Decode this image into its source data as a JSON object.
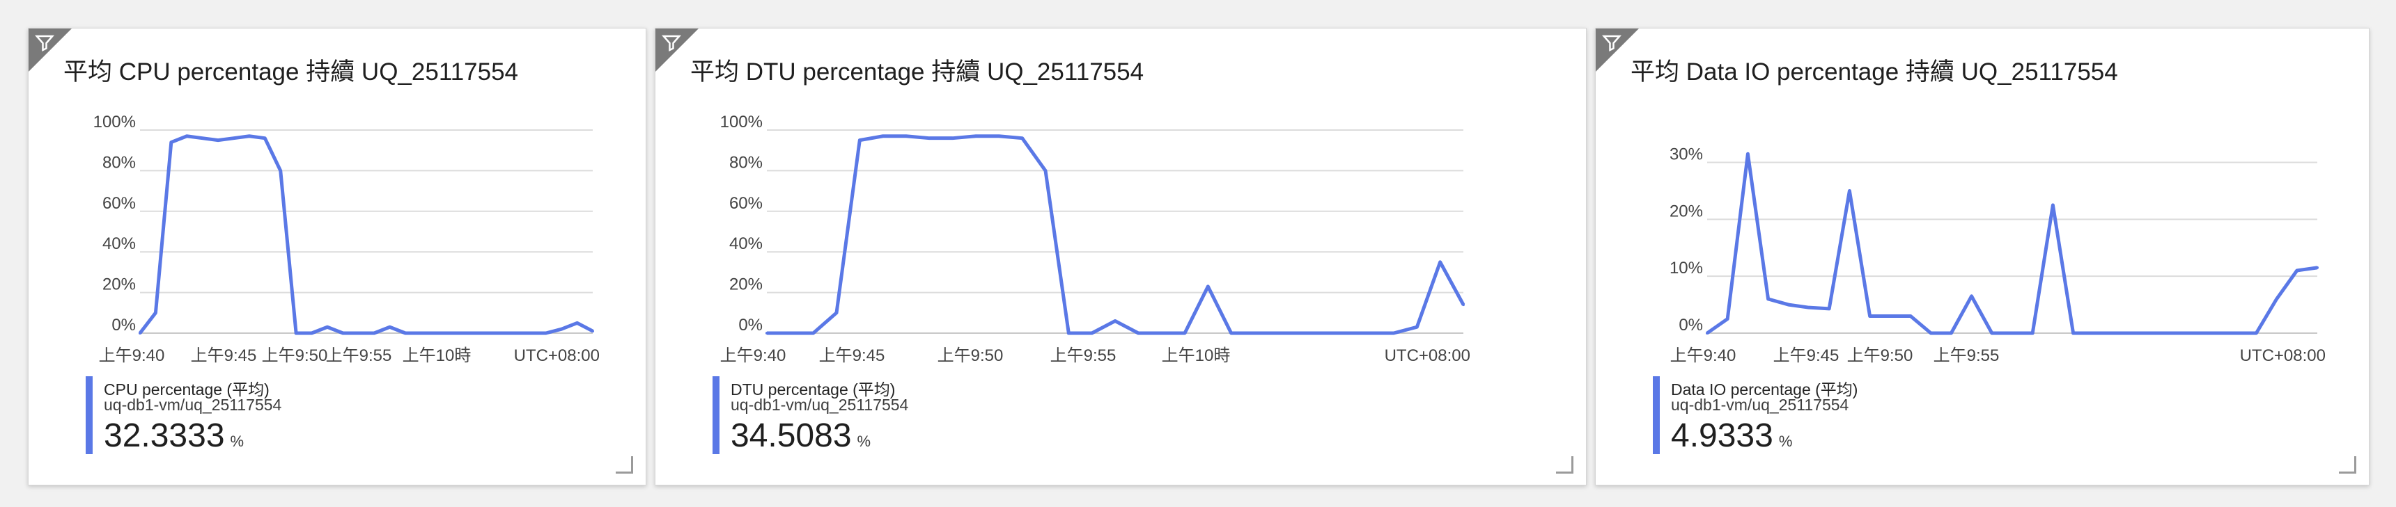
{
  "tiles": [
    {
      "title": "平均 CPU percentage 持續 UQ_25117554",
      "legend": {
        "name": "CPU percentage (平均)",
        "resource": "uq-db1-vm/uq_25117554",
        "value": "32.3333",
        "unit": "%"
      },
      "timezone": "UTC+08:00",
      "icon": "filter-icon"
    },
    {
      "title": "平均 DTU percentage 持續 UQ_25117554",
      "legend": {
        "name": "DTU percentage (平均)",
        "resource": "uq-db1-vm/uq_25117554",
        "value": "34.5083",
        "unit": "%"
      },
      "timezone": "UTC+08:00",
      "icon": "filter-icon"
    },
    {
      "title": "平均 Data IO percentage 持續 UQ_25117554",
      "legend": {
        "name": "Data IO percentage (平均)",
        "resource": "uq-db1-vm/uq_25117554",
        "value": "4.9333",
        "unit": "%"
      },
      "timezone": "UTC+08:00",
      "icon": "filter-icon"
    }
  ],
  "chart_data": [
    {
      "type": "line",
      "ylim": [
        0,
        100
      ],
      "y_ticks": [
        "0%",
        "20%",
        "40%",
        "60%",
        "80%",
        "100%"
      ],
      "x_ticks": [
        "上午9:40",
        "上午9:45",
        "上午9:50",
        "上午9:55",
        "上午10時"
      ],
      "series": [
        {
          "name": "CPU percentage (平均)",
          "color": "#5a78e6",
          "values": [
            0,
            10,
            94,
            97,
            96,
            95,
            96,
            97,
            96,
            80,
            0,
            0,
            3,
            0,
            0,
            0,
            3,
            0,
            0,
            0,
            0,
            0,
            0,
            0,
            0,
            0,
            0,
            2,
            5,
            1
          ]
        }
      ],
      "grid": true
    },
    {
      "type": "line",
      "ylim": [
        0,
        100
      ],
      "y_ticks": [
        "0%",
        "20%",
        "40%",
        "60%",
        "80%",
        "100%"
      ],
      "x_ticks": [
        "上午9:40",
        "上午9:45",
        "上午9:50",
        "上午9:55",
        "上午10時"
      ],
      "series": [
        {
          "name": "DTU percentage (平均)",
          "color": "#5a78e6",
          "values": [
            0,
            0,
            0,
            10,
            95,
            97,
            97,
            96,
            96,
            97,
            97,
            96,
            80,
            0,
            0,
            6,
            0,
            0,
            0,
            23,
            0,
            0,
            0,
            0,
            0,
            0,
            0,
            0,
            3,
            35,
            14
          ]
        }
      ],
      "grid": true
    },
    {
      "type": "line",
      "ylim": [
        0,
        33
      ],
      "y_ticks": [
        "0%",
        "10%",
        "20%",
        "30%"
      ],
      "x_ticks": [
        "上午9:40",
        "上午9:45",
        "上午9:50",
        "上午9:55"
      ],
      "series": [
        {
          "name": "Data IO percentage (平均)",
          "color": "#5a78e6",
          "values": [
            0,
            2.5,
            31.5,
            6,
            5,
            4.5,
            4.3,
            25,
            3,
            3,
            3,
            0,
            0,
            6.5,
            0,
            0,
            0,
            22.5,
            0,
            0,
            0,
            0,
            0,
            0,
            0,
            0,
            0,
            0,
            6,
            11,
            11.5
          ]
        }
      ],
      "grid": true
    }
  ]
}
